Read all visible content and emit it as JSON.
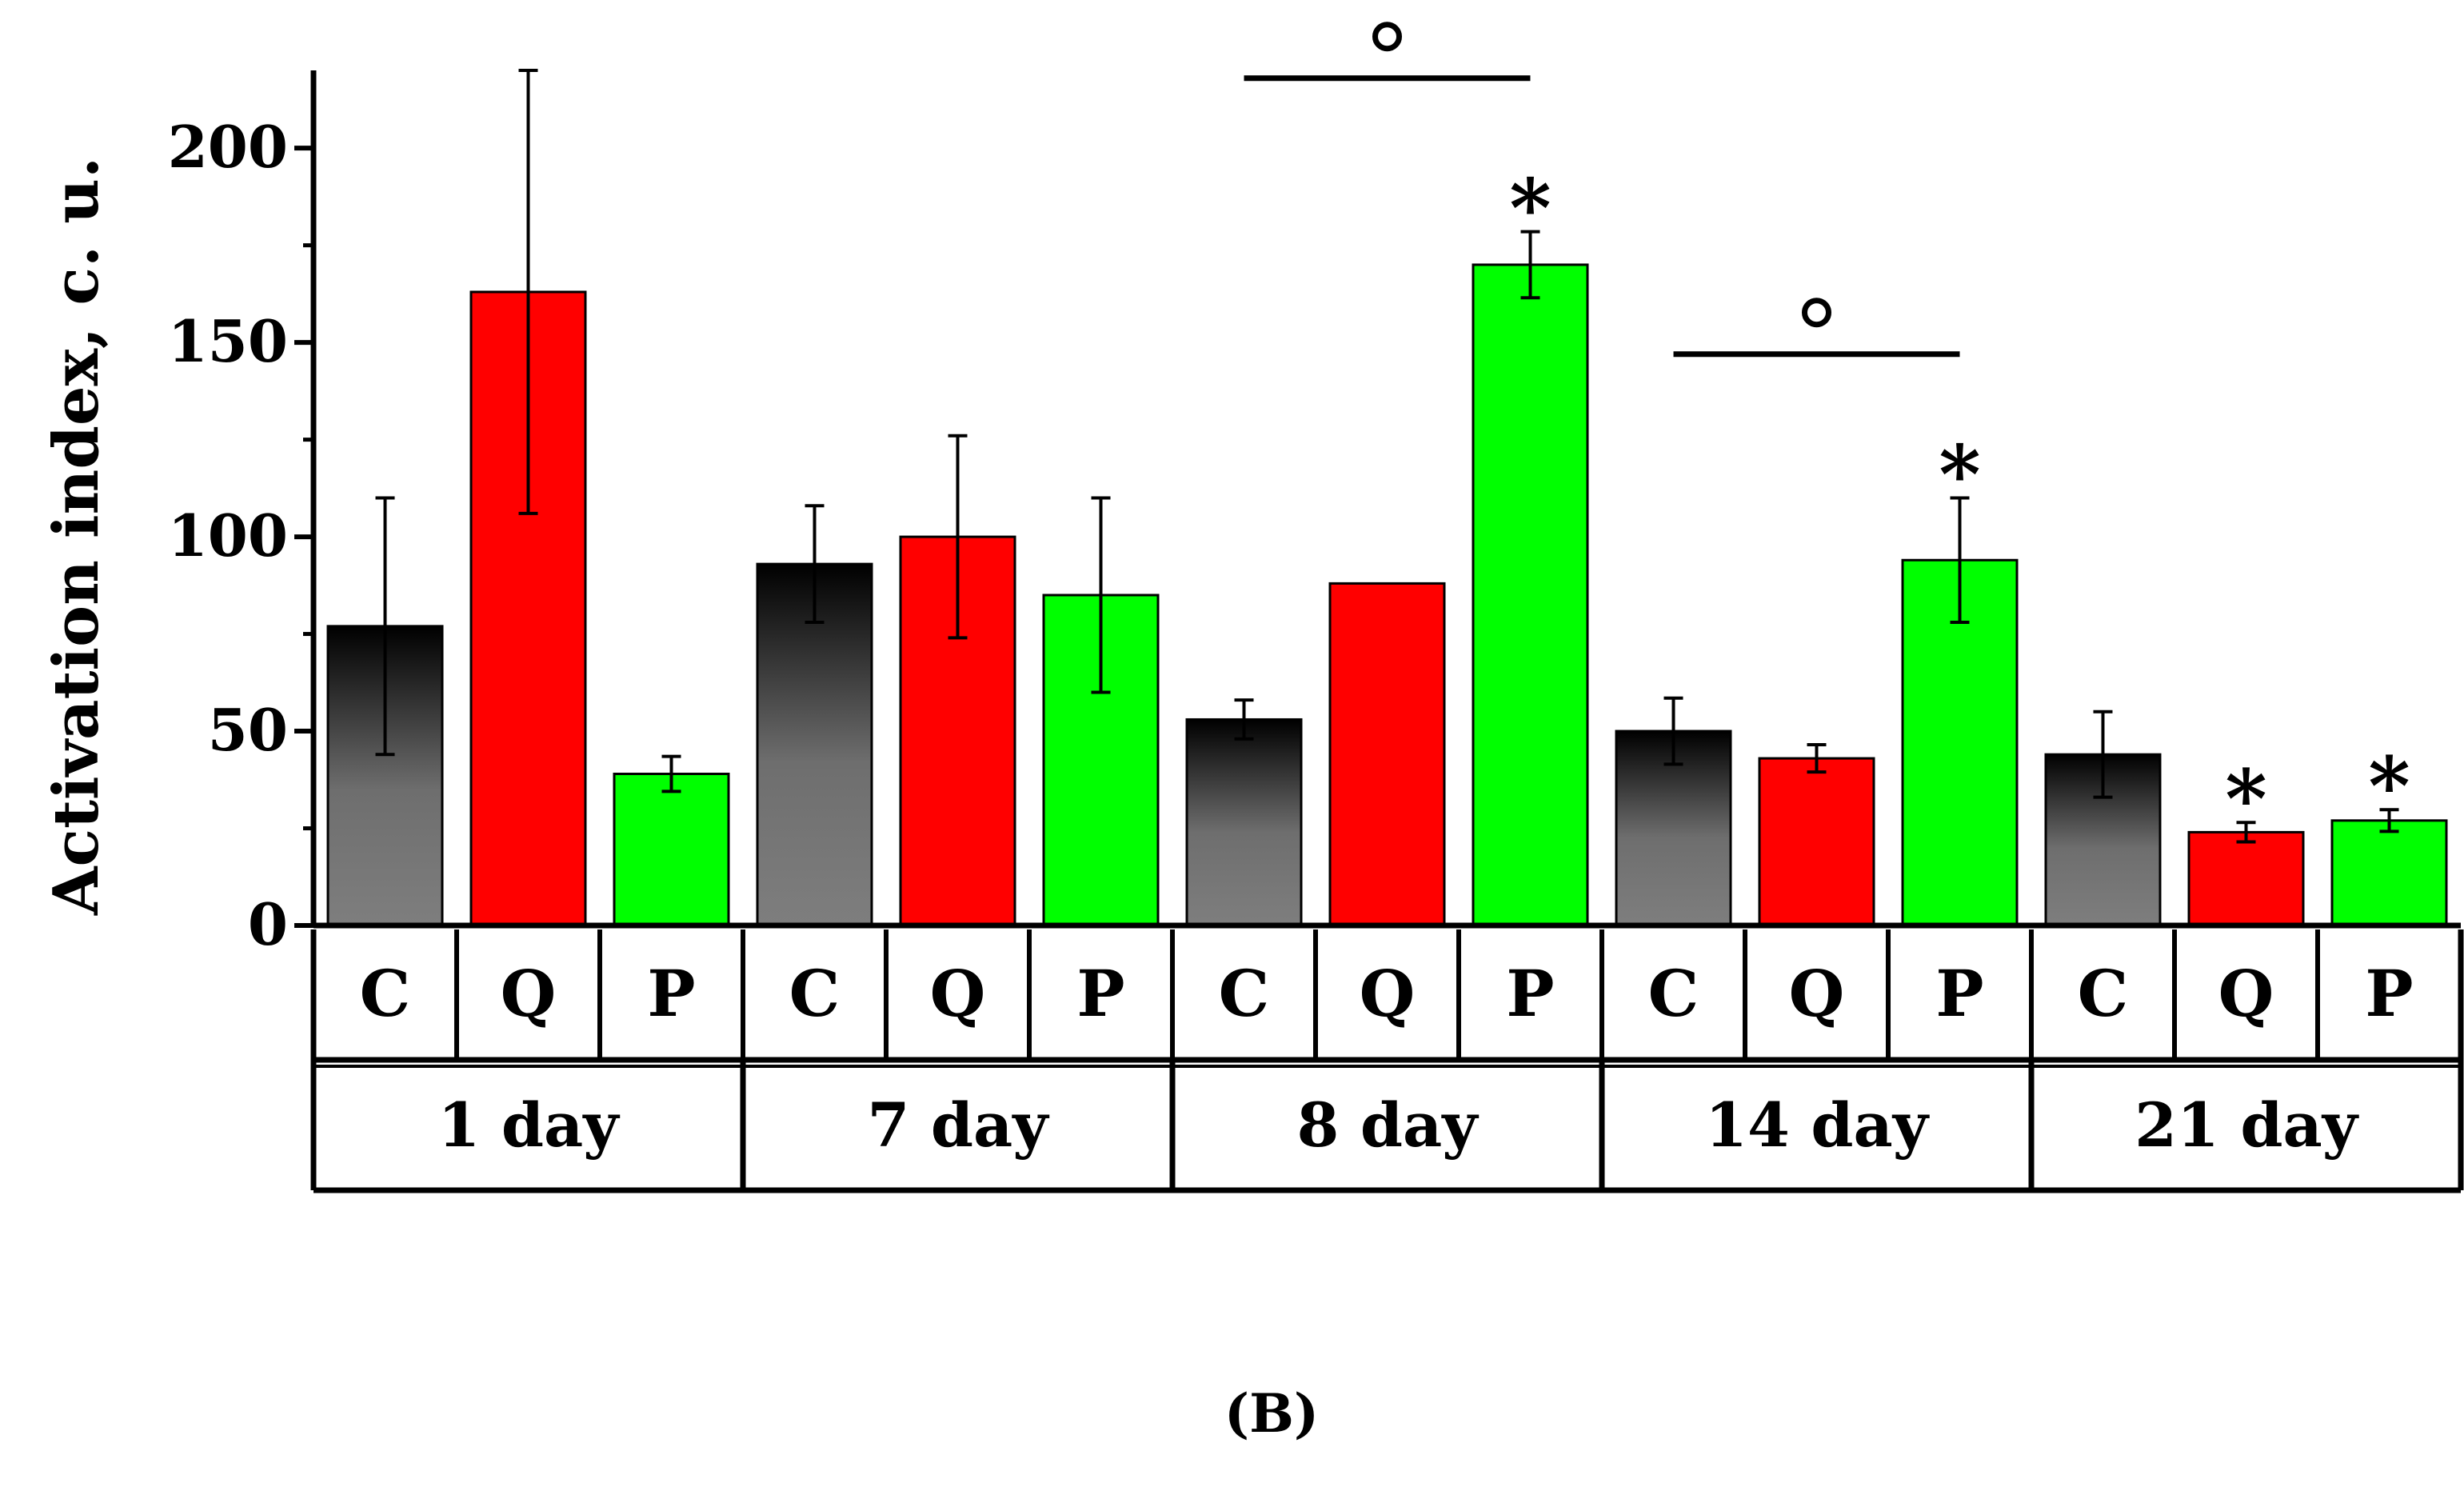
{
  "chart_data": {
    "type": "bar",
    "ylabel": "Activation index, c. u.",
    "ylim": [
      0,
      220
    ],
    "yticks": [
      0,
      50,
      100,
      150,
      200
    ],
    "panel_label": "(B)",
    "series_labels": [
      "C",
      "Q",
      "P"
    ],
    "series_colors": {
      "C": "gradient-black-gray",
      "Q": "#ff0000",
      "P": "#00ff00"
    },
    "groups": [
      {
        "label": "1 day",
        "bars": [
          {
            "series": "C",
            "value": 77,
            "error": 33
          },
          {
            "series": "Q",
            "value": 163,
            "error": 57
          },
          {
            "series": "P",
            "value": 39,
            "error": 4.5
          }
        ],
        "markers": [
          "",
          "",
          ""
        ]
      },
      {
        "label": "7 day",
        "bars": [
          {
            "series": "C",
            "value": 93,
            "error": 15
          },
          {
            "series": "Q",
            "value": 100,
            "error": 26
          },
          {
            "series": "P",
            "value": 85,
            "error": 25
          }
        ],
        "markers": [
          "",
          "",
          ""
        ]
      },
      {
        "label": "8 day",
        "bars": [
          {
            "series": "C",
            "value": 53,
            "error": 5
          },
          {
            "series": "Q",
            "value": 88,
            "error": 0
          },
          {
            "series": "P",
            "value": 170,
            "error": 8.5
          }
        ],
        "markers": [
          "",
          "",
          "*"
        ],
        "bracket": {
          "from": 0,
          "to": 2,
          "symbol": "°",
          "level": 218
        }
      },
      {
        "label": "14 day",
        "bars": [
          {
            "series": "C",
            "value": 50,
            "error": 8.5
          },
          {
            "series": "Q",
            "value": 43,
            "error": 3.5
          },
          {
            "series": "P",
            "value": 94,
            "error": 16
          }
        ],
        "markers": [
          "",
          "",
          "*"
        ],
        "bracket": {
          "from": 0,
          "to": 2,
          "symbol": "°",
          "level": 147
        }
      },
      {
        "label": "21 day",
        "bars": [
          {
            "series": "C",
            "value": 44,
            "error": 11
          },
          {
            "series": "Q",
            "value": 24,
            "error": 2.5
          },
          {
            "series": "P",
            "value": 27,
            "error": 2.8
          }
        ],
        "markers": [
          "",
          "*",
          "*"
        ]
      }
    ]
  }
}
